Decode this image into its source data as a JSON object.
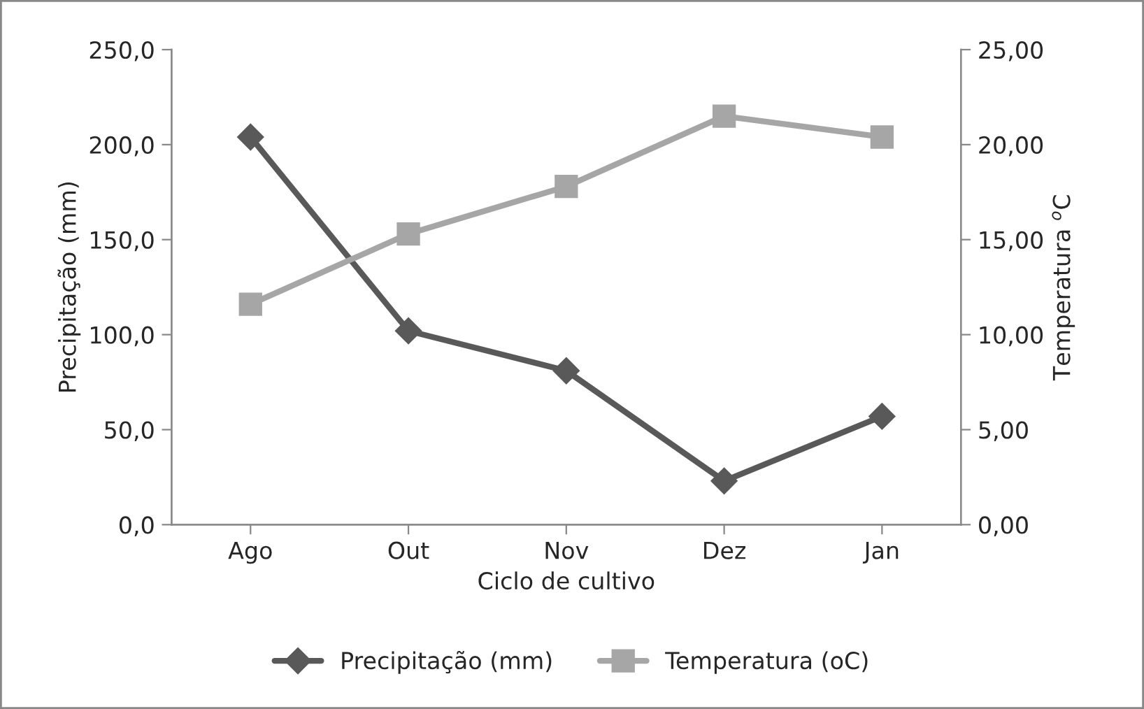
{
  "chart_data": {
    "type": "line",
    "xlabel": "Ciclo de cultivo",
    "ylabel": "Precipitação (mm)",
    "y2label": "Temperatura $^{o}$C",
    "categories": [
      "Ago",
      "Out",
      "Nov",
      "Dez",
      "Jan"
    ],
    "series": [
      {
        "name": "Precipitação (mm)",
        "color": "#595959",
        "marker": "diamond",
        "values": [
          204,
          102,
          81,
          23,
          57
        ]
      },
      {
        "name": "Temperatura (oC)",
        "color": "#a6a6a6",
        "marker": "square",
        "axis": "y2",
        "values": [
          11.6,
          15.3,
          17.8,
          21.5,
          20.4
        ]
      }
    ],
    "ylim": [
      0,
      250
    ],
    "yticks": [
      {
        "value": 0,
        "label": "0,0"
      },
      {
        "value": 50,
        "label": "50,0"
      },
      {
        "value": 100,
        "label": "100,0"
      },
      {
        "value": 150,
        "label": "150,0"
      },
      {
        "value": 200,
        "label": "200,0"
      },
      {
        "value": 250,
        "label": "250,0"
      }
    ],
    "y2lim": [
      0,
      25
    ],
    "y2ticks": [
      {
        "value": 0,
        "label": "0,00"
      },
      {
        "value": 5,
        "label": "5,00"
      },
      {
        "value": 10,
        "label": "10,00"
      },
      {
        "value": 15,
        "label": "15,00"
      },
      {
        "value": 20,
        "label": "20,00"
      },
      {
        "value": 25,
        "label": "25,00"
      }
    ],
    "grid": false,
    "legend": "bottom"
  }
}
